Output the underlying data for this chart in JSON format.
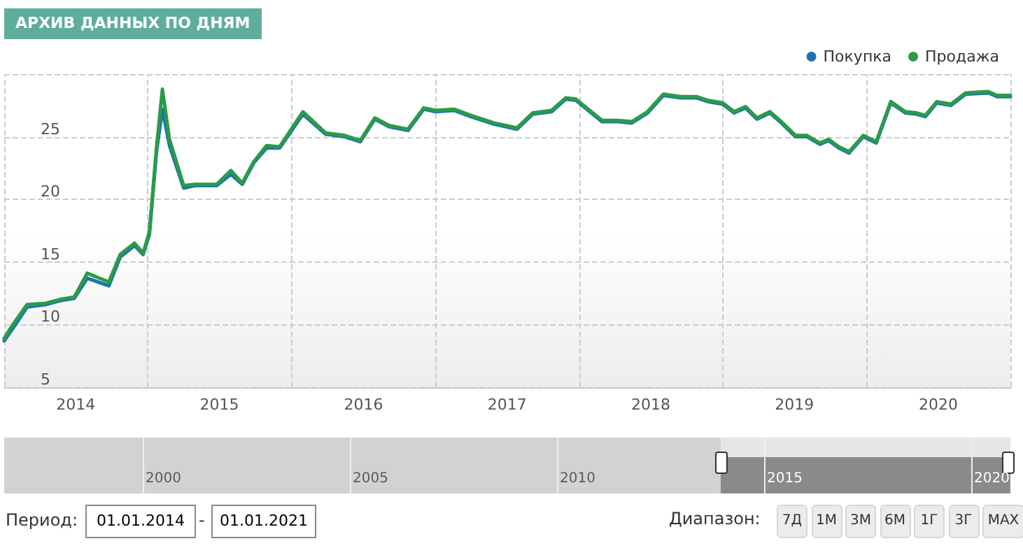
{
  "chart_data": {
    "type": "line",
    "title": "АРХИВ ДАННЫХ ПО ДНЯМ",
    "x": [
      "2014-01-01",
      "2014-01-23",
      "2014-02-28",
      "2014-04-16",
      "2014-05-22",
      "2014-06-28",
      "2014-07-31",
      "2014-09-24",
      "2014-10-23",
      "2014-11-28",
      "2014-12-20",
      "2015-01-05",
      "2015-01-23",
      "2015-02-07",
      "2015-02-25",
      "2015-04-02",
      "2015-05-01",
      "2015-06-25",
      "2015-07-31",
      "2015-08-29",
      "2015-09-27",
      "2015-10-30",
      "2015-12-02",
      "2016-01-30",
      "2016-03-28",
      "2016-05-15",
      "2016-06-24",
      "2016-07-31",
      "2016-09-05",
      "2016-10-23",
      "2016-12-02",
      "2017-01-01",
      "2017-02-17",
      "2017-04-01",
      "2017-05-30",
      "2017-07-27",
      "2017-09-05",
      "2017-10-23",
      "2017-11-28",
      "2017-12-24",
      "2018-02-28",
      "2018-04-09",
      "2018-05-15",
      "2018-06-24",
      "2018-08-03",
      "2018-09-16",
      "2018-10-27",
      "2018-11-25",
      "2019-01-01",
      "2019-01-30",
      "2019-02-28",
      "2019-03-29",
      "2019-05-01",
      "2019-05-30",
      "2019-07-05",
      "2019-08-03",
      "2019-09-05",
      "2019-09-27",
      "2019-10-23",
      "2019-11-18",
      "2019-12-24",
      "2020-01-26",
      "2020-03-03",
      "2020-04-09",
      "2020-05-08",
      "2020-05-30",
      "2020-06-28",
      "2020-08-03",
      "2020-09-09",
      "2020-11-06",
      "2020-11-28",
      "2021-01-01"
    ],
    "series": [
      {
        "name": "Покупка",
        "color": "#1b75ae",
        "values": [
          8.7,
          9.7,
          11.4,
          11.6,
          11.9,
          12.1,
          13.7,
          13.1,
          15.4,
          16.3,
          15.6,
          17.2,
          23.8,
          27.2,
          24.3,
          20.9,
          21.1,
          21.1,
          22.0,
          21.2,
          22.9,
          24.1,
          24.1,
          26.8,
          25.2,
          25.0,
          24.6,
          26.4,
          25.8,
          25.5,
          27.2,
          27.0,
          27.1,
          26.6,
          26.0,
          25.6,
          26.8,
          27.0,
          28.0,
          27.9,
          26.2,
          26.2,
          26.1,
          26.9,
          28.3,
          28.1,
          28.1,
          27.8,
          27.6,
          26.9,
          27.3,
          26.4,
          26.9,
          26.1,
          25.0,
          25.0,
          24.4,
          24.7,
          24.1,
          23.7,
          25.0,
          24.5,
          27.7,
          26.9,
          26.8,
          26.6,
          27.7,
          27.5,
          28.4,
          28.5,
          28.2,
          28.2
        ]
      },
      {
        "name": "Продажа",
        "color": "#2b9b48",
        "values": [
          8.9,
          10.0,
          11.6,
          11.7,
          12.0,
          12.2,
          14.1,
          13.4,
          15.6,
          16.5,
          15.7,
          17.4,
          24.1,
          28.8,
          24.8,
          21.1,
          21.2,
          21.2,
          22.3,
          21.3,
          23.0,
          24.3,
          24.2,
          27.0,
          25.3,
          25.1,
          24.7,
          26.5,
          25.9,
          25.6,
          27.3,
          27.1,
          27.2,
          26.7,
          26.1,
          25.7,
          26.9,
          27.1,
          28.1,
          28.0,
          26.3,
          26.3,
          26.2,
          27.0,
          28.4,
          28.2,
          28.2,
          27.9,
          27.7,
          27.0,
          27.4,
          26.5,
          27.0,
          26.2,
          25.1,
          25.1,
          24.5,
          24.8,
          24.2,
          23.8,
          25.1,
          24.6,
          27.8,
          27.0,
          26.9,
          26.7,
          27.8,
          27.6,
          28.5,
          28.6,
          28.3,
          28.3
        ]
      }
    ],
    "xlim": [
      "2014-01-01",
      "2021-01-01"
    ],
    "xticks": [
      {
        "value": "2014-01-01",
        "label": null
      },
      {
        "value": "2014-07-02",
        "label": "2014"
      },
      {
        "value": "2015-01-01",
        "label": null
      },
      {
        "value": "2015-07-02",
        "label": "2015"
      },
      {
        "value": "2016-01-01",
        "label": null
      },
      {
        "value": "2016-07-02",
        "label": "2016"
      },
      {
        "value": "2017-01-01",
        "label": null
      },
      {
        "value": "2017-07-02",
        "label": "2017"
      },
      {
        "value": "2018-01-01",
        "label": null
      },
      {
        "value": "2018-07-02",
        "label": "2018"
      },
      {
        "value": "2019-01-01",
        "label": null
      },
      {
        "value": "2019-07-02",
        "label": "2019"
      },
      {
        "value": "2020-01-01",
        "label": null
      },
      {
        "value": "2020-07-02",
        "label": "2020"
      },
      {
        "value": "2021-01-01",
        "label": null
      }
    ],
    "ylim": [
      5,
      30
    ],
    "yticks": [
      5,
      10,
      15,
      20,
      25,
      {
        "value": 30,
        "label": null
      }
    ],
    "grid": true,
    "legend": "top right",
    "marker": "none",
    "line_style": "solid",
    "annotations": [
      "Период:",
      "01.01.2014",
      "-",
      "01.01.2021",
      "Диапазон:",
      "7Д",
      "1М",
      "3М",
      "6М",
      "1Г",
      "3Г",
      "MAX",
      "2000",
      "2005",
      "2010",
      "2015",
      "2020"
    ]
  }
}
